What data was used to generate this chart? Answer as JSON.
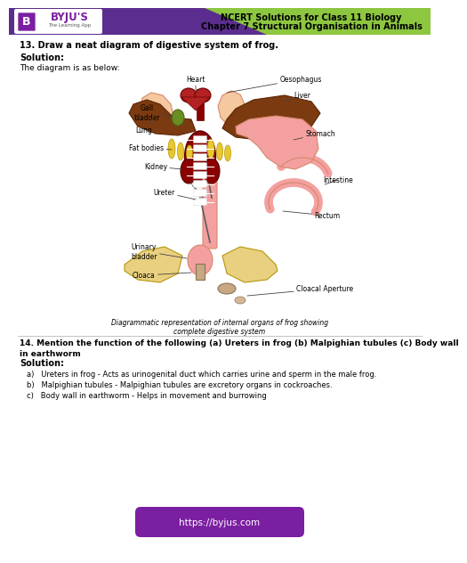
{
  "bg_color": "#ffffff",
  "header_purple": "#5b2d8e",
  "header_green": "#8dc63f",
  "logo_purple": "#7b1fa2",
  "byju_text": "BYJU'S",
  "byju_sub": "The Learning App",
  "header_line1": "NCERT Solutions for Class 11 Biology",
  "header_line2": "Chapter 7 Structural Organisation in Animals",
  "q13": "13. Draw a neat diagram of digestive system of frog.",
  "sol1": "Solution:",
  "diag_text": "The diagram is as below:",
  "caption": "Diagrammatic representation of internal organs of frog showing\ncomplete digestive system",
  "q14": "14. Mention the function of the following (a) Ureters in frog (b) Malpighian tubules (c) Body wall\nin earthworm",
  "sol2": "Solution:",
  "ans_a": "a)   Ureters in frog - Acts as urinogenital duct which carries urine and sperm in the male frog.",
  "ans_b": "b)   Malpighian tubules - Malpighian tubules are excretory organs in cockroaches.",
  "ans_c": "c)   Body wall in earthworm - Helps in movement and burrowing",
  "footer_text": "https://byjus.com",
  "footer_bg": "#7b1fa2",
  "color_liver": "#7b3a10",
  "color_heart": "#b22222",
  "color_lung": "#f5c8a0",
  "color_gall": "#6b8e23",
  "color_fat": "#e8c830",
  "color_kidney": "#8b0000",
  "color_stomach": "#f4a0a0",
  "color_intestine": "#f4a0a0",
  "color_urinary": "#e8d080",
  "color_spine": "#8b0000",
  "color_spine_white": "#ffffff",
  "color_body_bg": "#f5deb3"
}
